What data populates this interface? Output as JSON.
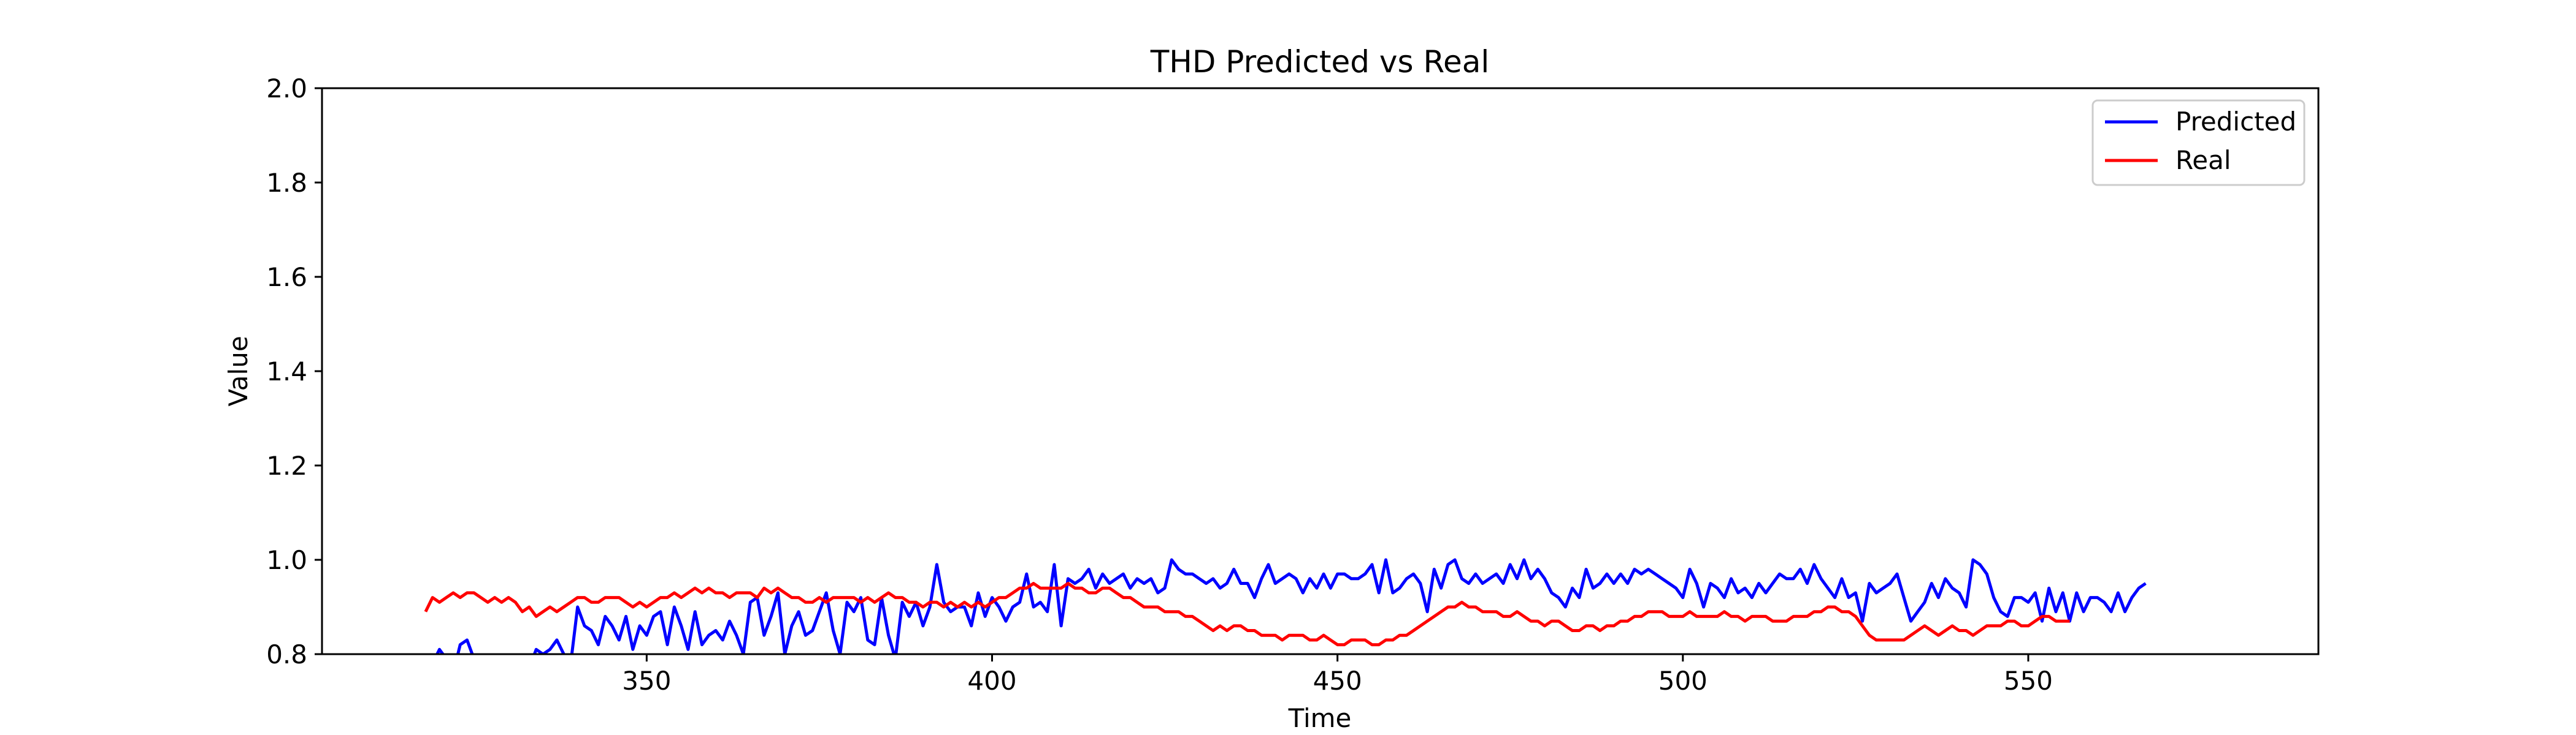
{
  "chart_data": {
    "type": "line",
    "title": "THD Predicted vs Real",
    "xlabel": "Time",
    "ylabel": "Value",
    "xlim": [
      303,
      592
    ],
    "ylim": [
      0.8,
      2.0
    ],
    "xticks": [
      350,
      400,
      450,
      500,
      550
    ],
    "yticks": [
      0.8,
      1.0,
      1.2,
      1.4,
      1.6,
      1.8,
      2.0
    ],
    "grid": false,
    "legend_position": "top-right",
    "series": [
      {
        "name": "Predicted",
        "color": "#0000ff",
        "x_start": 318,
        "x_step": 1,
        "values": [
          0.76,
          0.78,
          0.81,
          0.79,
          0.76,
          0.82,
          0.83,
          0.79,
          0.74,
          0.76,
          0.72,
          0.74,
          0.77,
          0.75,
          0.78,
          0.77,
          0.81,
          0.8,
          0.81,
          0.83,
          0.8,
          0.78,
          0.9,
          0.86,
          0.85,
          0.82,
          0.88,
          0.86,
          0.83,
          0.88,
          0.81,
          0.86,
          0.84,
          0.88,
          0.89,
          0.82,
          0.9,
          0.86,
          0.81,
          0.89,
          0.82,
          0.84,
          0.85,
          0.83,
          0.87,
          0.84,
          0.8,
          0.91,
          0.92,
          0.84,
          0.88,
          0.93,
          0.8,
          0.86,
          0.89,
          0.84,
          0.85,
          0.89,
          0.93,
          0.85,
          0.8,
          0.91,
          0.89,
          0.92,
          0.83,
          0.82,
          0.92,
          0.84,
          0.79,
          0.91,
          0.88,
          0.91,
          0.86,
          0.9,
          0.99,
          0.91,
          0.89,
          0.9,
          0.9,
          0.86,
          0.93,
          0.88,
          0.92,
          0.9,
          0.87,
          0.9,
          0.91,
          0.97,
          0.9,
          0.91,
          0.89,
          0.99,
          0.86,
          0.96,
          0.95,
          0.96,
          0.98,
          0.94,
          0.97,
          0.95,
          0.96,
          0.97,
          0.94,
          0.96,
          0.95,
          0.96,
          0.93,
          0.94,
          1.0,
          0.98,
          0.97,
          0.97,
          0.96,
          0.95,
          0.96,
          0.94,
          0.95,
          0.98,
          0.95,
          0.95,
          0.92,
          0.96,
          0.99,
          0.95,
          0.96,
          0.97,
          0.96,
          0.93,
          0.96,
          0.94,
          0.97,
          0.94,
          0.97,
          0.97,
          0.96,
          0.96,
          0.97,
          0.99,
          0.93,
          1.0,
          0.93,
          0.94,
          0.96,
          0.97,
          0.95,
          0.89,
          0.98,
          0.94,
          0.99,
          1.0,
          0.96,
          0.95,
          0.97,
          0.95,
          0.96,
          0.97,
          0.95,
          0.99,
          0.96,
          1.0,
          0.96,
          0.98,
          0.96,
          0.93,
          0.92,
          0.9,
          0.94,
          0.92,
          0.98,
          0.94,
          0.95,
          0.97,
          0.95,
          0.97,
          0.95,
          0.98,
          0.97,
          0.98,
          0.97,
          0.96,
          0.95,
          0.94,
          0.92,
          0.98,
          0.95,
          0.9,
          0.95,
          0.94,
          0.92,
          0.96,
          0.93,
          0.94,
          0.92,
          0.95,
          0.93,
          0.95,
          0.97,
          0.96,
          0.96,
          0.98,
          0.95,
          0.99,
          0.96,
          0.94,
          0.92,
          0.96,
          0.92,
          0.93,
          0.87,
          0.95,
          0.93,
          0.94,
          0.95,
          0.97,
          0.92,
          0.87,
          0.89,
          0.91,
          0.95,
          0.92,
          0.96,
          0.94,
          0.93,
          0.9,
          1.0,
          0.99,
          0.97,
          0.92,
          0.89,
          0.88,
          0.92,
          0.92,
          0.91,
          0.93,
          0.87,
          0.94,
          0.89,
          0.93,
          0.87,
          0.93,
          0.89,
          0.92,
          0.92,
          0.91,
          0.89,
          0.93,
          0.89,
          0.92,
          0.94,
          0.95
        ]
      },
      {
        "name": "Real",
        "color": "#ff0000",
        "x_start": 318,
        "x_step": 1,
        "values": [
          0.89,
          0.92,
          0.91,
          0.92,
          0.93,
          0.92,
          0.93,
          0.93,
          0.92,
          0.91,
          0.92,
          0.91,
          0.92,
          0.91,
          0.89,
          0.9,
          0.88,
          0.89,
          0.9,
          0.89,
          0.9,
          0.91,
          0.92,
          0.92,
          0.91,
          0.91,
          0.92,
          0.92,
          0.92,
          0.91,
          0.9,
          0.91,
          0.9,
          0.91,
          0.92,
          0.92,
          0.93,
          0.92,
          0.93,
          0.94,
          0.93,
          0.94,
          0.93,
          0.93,
          0.92,
          0.93,
          0.93,
          0.93,
          0.92,
          0.94,
          0.93,
          0.94,
          0.93,
          0.92,
          0.92,
          0.91,
          0.91,
          0.92,
          0.91,
          0.92,
          0.92,
          0.92,
          0.92,
          0.91,
          0.92,
          0.91,
          0.92,
          0.93,
          0.92,
          0.92,
          0.91,
          0.91,
          0.9,
          0.91,
          0.91,
          0.9,
          0.91,
          0.9,
          0.91,
          0.9,
          0.91,
          0.9,
          0.91,
          0.92,
          0.92,
          0.93,
          0.94,
          0.94,
          0.95,
          0.94,
          0.94,
          0.94,
          0.94,
          0.95,
          0.94,
          0.94,
          0.93,
          0.93,
          0.94,
          0.94,
          0.93,
          0.92,
          0.92,
          0.91,
          0.9,
          0.9,
          0.9,
          0.89,
          0.89,
          0.89,
          0.88,
          0.88,
          0.87,
          0.86,
          0.85,
          0.86,
          0.85,
          0.86,
          0.86,
          0.85,
          0.85,
          0.84,
          0.84,
          0.84,
          0.83,
          0.84,
          0.84,
          0.84,
          0.83,
          0.83,
          0.84,
          0.83,
          0.82,
          0.82,
          0.83,
          0.83,
          0.83,
          0.82,
          0.82,
          0.83,
          0.83,
          0.84,
          0.84,
          0.85,
          0.86,
          0.87,
          0.88,
          0.89,
          0.9,
          0.9,
          0.91,
          0.9,
          0.9,
          0.89,
          0.89,
          0.89,
          0.88,
          0.88,
          0.89,
          0.88,
          0.87,
          0.87,
          0.86,
          0.87,
          0.87,
          0.86,
          0.85,
          0.85,
          0.86,
          0.86,
          0.85,
          0.86,
          0.86,
          0.87,
          0.87,
          0.88,
          0.88,
          0.89,
          0.89,
          0.89,
          0.88,
          0.88,
          0.88,
          0.89,
          0.88,
          0.88,
          0.88,
          0.88,
          0.89,
          0.88,
          0.88,
          0.87,
          0.88,
          0.88,
          0.88,
          0.87,
          0.87,
          0.87,
          0.88,
          0.88,
          0.88,
          0.89,
          0.89,
          0.9,
          0.9,
          0.89,
          0.89,
          0.88,
          0.86,
          0.84,
          0.83,
          0.83,
          0.83,
          0.83,
          0.83,
          0.84,
          0.85,
          0.86,
          0.85,
          0.84,
          0.85,
          0.86,
          0.85,
          0.85,
          0.84,
          0.85,
          0.86,
          0.86,
          0.86,
          0.87,
          0.87,
          0.86,
          0.86,
          0.87,
          0.88,
          0.88,
          0.87,
          0.87,
          0.87
        ]
      }
    ]
  }
}
